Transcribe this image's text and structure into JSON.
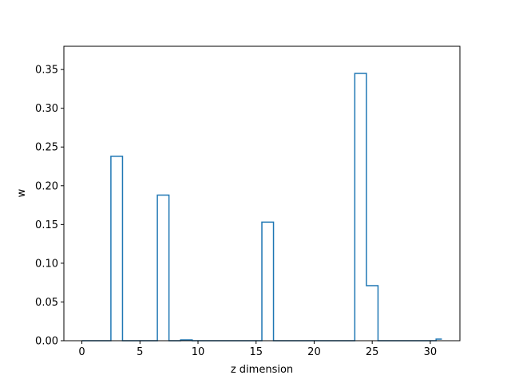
{
  "chart_data": {
    "type": "line",
    "drawstyle": "steps-mid",
    "title": "",
    "xlabel": "z dimension",
    "ylabel": "w",
    "xlim": [
      -1.55,
      32.55
    ],
    "ylim": [
      0,
      0.38
    ],
    "xticks": [
      0,
      5,
      10,
      15,
      20,
      25,
      30
    ],
    "yticks": [
      0.0,
      0.05,
      0.1,
      0.15,
      0.2,
      0.25,
      0.3,
      0.35
    ],
    "xtick_labels": [
      "0",
      "5",
      "10",
      "15",
      "20",
      "25",
      "30"
    ],
    "ytick_labels": [
      "0.00",
      "0.05",
      "0.10",
      "0.15",
      "0.20",
      "0.25",
      "0.30",
      "0.35"
    ],
    "grid": false,
    "legend": "none",
    "series": [
      {
        "color": "#1f77b4",
        "x": [
          0,
          1,
          2,
          3,
          4,
          5,
          6,
          7,
          8,
          9,
          10,
          11,
          12,
          13,
          14,
          15,
          16,
          17,
          18,
          19,
          20,
          21,
          22,
          23,
          24,
          25,
          26,
          27,
          28,
          29,
          30,
          31
        ],
        "y": [
          0,
          0,
          0,
          0.238,
          0,
          0,
          0,
          0.188,
          0,
          0.001,
          0,
          0,
          0,
          0,
          0,
          0,
          0.153,
          0,
          0,
          0,
          0,
          0,
          0,
          0,
          0.345,
          0.071,
          0,
          0,
          0,
          0,
          0,
          0.002
        ]
      }
    ]
  }
}
